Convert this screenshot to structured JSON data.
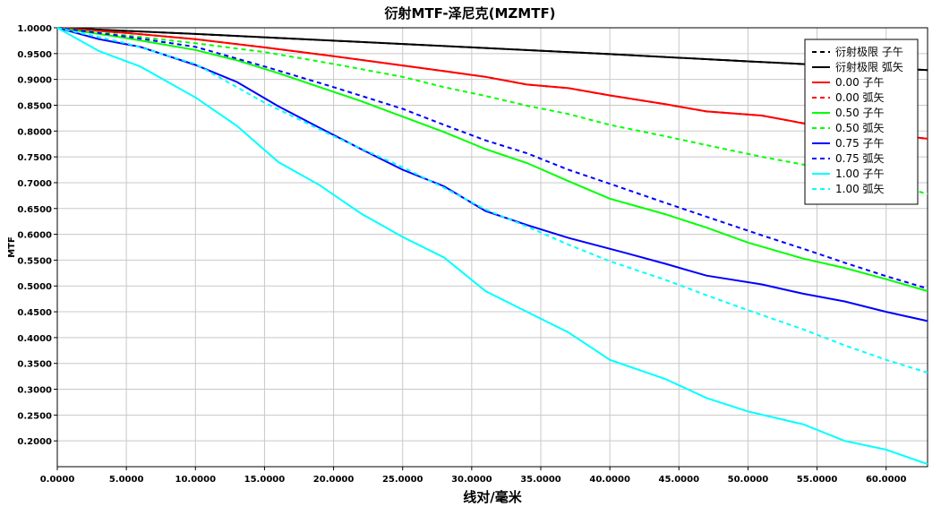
{
  "chart_data": {
    "type": "line",
    "title": "衍射MTF-泽尼克(MZMTF)",
    "xlabel": "线对/毫米",
    "ylabel": "MTF",
    "xlim": [
      0,
      63
    ],
    "ylim": [
      0.15,
      1.0
    ],
    "x_ticks": [
      0,
      5,
      10,
      15,
      20,
      25,
      30,
      35,
      40,
      45,
      50,
      55,
      60
    ],
    "x_tick_labels": [
      "0.0000",
      "5.0000",
      "10.0000",
      "15.0000",
      "20.0000",
      "25.0000",
      "30.0000",
      "35.0000",
      "40.0000",
      "45.0000",
      "50.0000",
      "55.0000",
      "60.0000"
    ],
    "y_ticks": [
      1.0,
      0.95,
      0.9,
      0.85,
      0.8,
      0.75,
      0.7,
      0.65,
      0.6,
      0.55,
      0.5,
      0.45,
      0.4,
      0.35,
      0.3,
      0.25,
      0.2
    ],
    "y_tick_labels": [
      "1.0000",
      "0.9500",
      "0.9000",
      "0.8500",
      "0.8000",
      "0.7500",
      "0.7000",
      "0.6500",
      "0.6000",
      "0.5500",
      "0.5000",
      "0.4500",
      "0.4000",
      "0.3500",
      "0.3000",
      "0.2500",
      "0.2000"
    ],
    "grid": true,
    "legend_position": "top-right",
    "series": [
      {
        "name": "衍射极限 子午",
        "color": "#000000",
        "dash": true,
        "points": [
          [
            0,
            1.0
          ],
          [
            10,
            0.988
          ],
          [
            20,
            0.975
          ],
          [
            30,
            0.962
          ],
          [
            40,
            0.949
          ],
          [
            50,
            0.935
          ],
          [
            63,
            0.918
          ]
        ]
      },
      {
        "name": "衍射极限 弧矢",
        "color": "#000000",
        "dash": false,
        "points": [
          [
            0,
            1.0
          ],
          [
            10,
            0.988
          ],
          [
            20,
            0.975
          ],
          [
            30,
            0.962
          ],
          [
            40,
            0.949
          ],
          [
            50,
            0.935
          ],
          [
            63,
            0.918
          ]
        ]
      },
      {
        "name": "0.00 子午",
        "color": "#ff0000",
        "dash": false,
        "points": [
          [
            0,
            1.0
          ],
          [
            5,
            0.99
          ],
          [
            10,
            0.978
          ],
          [
            15,
            0.962
          ],
          [
            20,
            0.945
          ],
          [
            25,
            0.927
          ],
          [
            28,
            0.916
          ],
          [
            31,
            0.905
          ],
          [
            34,
            0.89
          ],
          [
            37,
            0.883
          ],
          [
            40,
            0.869
          ],
          [
            44,
            0.852
          ],
          [
            47,
            0.838
          ],
          [
            51,
            0.83
          ],
          [
            54,
            0.815
          ],
          [
            58,
            0.8
          ],
          [
            63,
            0.785
          ]
        ]
      },
      {
        "name": "0.00 弧矢",
        "color": "#ff0000",
        "dash": true,
        "points": [
          [
            0,
            1.0
          ],
          [
            5,
            0.99
          ],
          [
            10,
            0.978
          ],
          [
            15,
            0.962
          ],
          [
            20,
            0.945
          ],
          [
            25,
            0.927
          ],
          [
            28,
            0.916
          ],
          [
            31,
            0.905
          ],
          [
            34,
            0.89
          ],
          [
            37,
            0.883
          ],
          [
            40,
            0.869
          ],
          [
            44,
            0.852
          ],
          [
            47,
            0.838
          ],
          [
            51,
            0.83
          ],
          [
            54,
            0.815
          ],
          [
            58,
            0.8
          ],
          [
            63,
            0.785
          ]
        ]
      },
      {
        "name": "0.50 子午",
        "color": "#00ff00",
        "dash": false,
        "points": [
          [
            0,
            1.0
          ],
          [
            5,
            0.98
          ],
          [
            10,
            0.957
          ],
          [
            13,
            0.937
          ],
          [
            16,
            0.912
          ],
          [
            19,
            0.885
          ],
          [
            22,
            0.858
          ],
          [
            25,
            0.828
          ],
          [
            28,
            0.798
          ],
          [
            31,
            0.765
          ],
          [
            34,
            0.738
          ],
          [
            37,
            0.703
          ],
          [
            40,
            0.669
          ],
          [
            44,
            0.639
          ],
          [
            47,
            0.613
          ],
          [
            50,
            0.584
          ],
          [
            54,
            0.553
          ],
          [
            57,
            0.535
          ],
          [
            60,
            0.513
          ],
          [
            63,
            0.49
          ]
        ]
      },
      {
        "name": "0.50 弧矢",
        "color": "#00ff00",
        "dash": true,
        "points": [
          [
            0,
            1.0
          ],
          [
            5,
            0.985
          ],
          [
            10,
            0.97
          ],
          [
            15,
            0.953
          ],
          [
            20,
            0.93
          ],
          [
            25,
            0.905
          ],
          [
            28,
            0.885
          ],
          [
            31,
            0.868
          ],
          [
            34,
            0.849
          ],
          [
            37,
            0.833
          ],
          [
            40,
            0.812
          ],
          [
            44,
            0.79
          ],
          [
            48,
            0.767
          ],
          [
            51,
            0.75
          ],
          [
            55,
            0.73
          ],
          [
            58,
            0.712
          ],
          [
            61,
            0.693
          ],
          [
            63,
            0.678
          ]
        ]
      },
      {
        "name": "0.75 子午",
        "color": "#0000ff",
        "dash": false,
        "points": [
          [
            0,
            1.0
          ],
          [
            3,
            0.978
          ],
          [
            6,
            0.963
          ],
          [
            10,
            0.928
          ],
          [
            13,
            0.895
          ],
          [
            16,
            0.848
          ],
          [
            19,
            0.806
          ],
          [
            22,
            0.765
          ],
          [
            25,
            0.725
          ],
          [
            28,
            0.693
          ],
          [
            31,
            0.645
          ],
          [
            34,
            0.618
          ],
          [
            37,
            0.593
          ],
          [
            41,
            0.565
          ],
          [
            44,
            0.543
          ],
          [
            47,
            0.52
          ],
          [
            51,
            0.503
          ],
          [
            54,
            0.485
          ],
          [
            57,
            0.47
          ],
          [
            60,
            0.45
          ],
          [
            63,
            0.432
          ]
        ]
      },
      {
        "name": "0.75 弧矢",
        "color": "#0000ff",
        "dash": true,
        "points": [
          [
            0,
            1.0
          ],
          [
            5,
            0.983
          ],
          [
            10,
            0.963
          ],
          [
            15,
            0.925
          ],
          [
            20,
            0.885
          ],
          [
            25,
            0.843
          ],
          [
            28,
            0.812
          ],
          [
            31,
            0.782
          ],
          [
            34,
            0.757
          ],
          [
            37,
            0.725
          ],
          [
            40,
            0.698
          ],
          [
            44,
            0.661
          ],
          [
            48,
            0.625
          ],
          [
            51,
            0.598
          ],
          [
            54,
            0.572
          ],
          [
            57,
            0.545
          ],
          [
            60,
            0.519
          ],
          [
            63,
            0.495
          ]
        ]
      },
      {
        "name": "1.00 子午",
        "color": "#00ffff",
        "dash": false,
        "points": [
          [
            0,
            1.0
          ],
          [
            3,
            0.955
          ],
          [
            6,
            0.925
          ],
          [
            10,
            0.865
          ],
          [
            13,
            0.81
          ],
          [
            16,
            0.74
          ],
          [
            19,
            0.695
          ],
          [
            22,
            0.64
          ],
          [
            25,
            0.595
          ],
          [
            28,
            0.555
          ],
          [
            31,
            0.49
          ],
          [
            34,
            0.45
          ],
          [
            37,
            0.41
          ],
          [
            40,
            0.357
          ],
          [
            44,
            0.32
          ],
          [
            47,
            0.283
          ],
          [
            50,
            0.257
          ],
          [
            54,
            0.232
          ],
          [
            57,
            0.2
          ],
          [
            60,
            0.183
          ],
          [
            63,
            0.155
          ]
        ]
      },
      {
        "name": "1.00 弧矢",
        "color": "#00ffff",
        "dash": true,
        "points": [
          [
            0,
            1.0
          ],
          [
            5,
            0.97
          ],
          [
            10,
            0.93
          ],
          [
            15,
            0.855
          ],
          [
            20,
            0.79
          ],
          [
            25,
            0.73
          ],
          [
            28,
            0.69
          ],
          [
            31,
            0.648
          ],
          [
            34,
            0.615
          ],
          [
            37,
            0.58
          ],
          [
            40,
            0.548
          ],
          [
            44,
            0.512
          ],
          [
            47,
            0.482
          ],
          [
            50,
            0.453
          ],
          [
            54,
            0.416
          ],
          [
            57,
            0.385
          ],
          [
            60,
            0.357
          ],
          [
            63,
            0.332
          ]
        ]
      }
    ]
  }
}
